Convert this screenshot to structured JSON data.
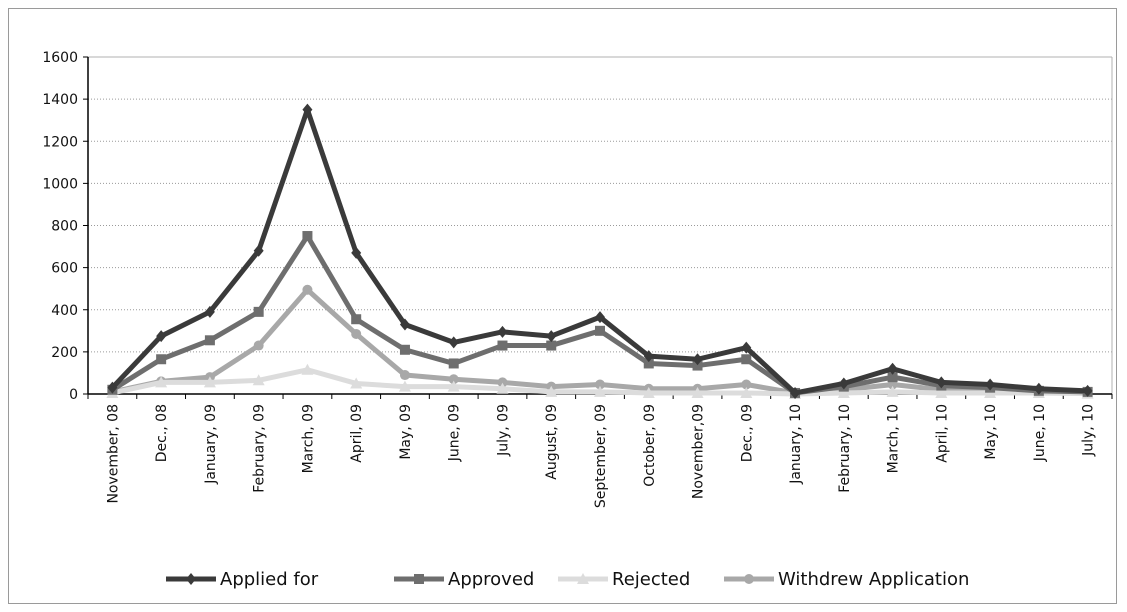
{
  "chart_data": {
    "type": "line",
    "title": "",
    "xlabel": "",
    "ylabel": "",
    "ylim": [
      0,
      1600
    ],
    "yticks": [
      0,
      200,
      400,
      600,
      800,
      1000,
      1200,
      1400,
      1600
    ],
    "grid": true,
    "legend_position": "bottom",
    "categories": [
      "November, 08",
      "Dec., 08",
      "January, 09",
      "February, 09",
      "March, 09",
      "April, 09",
      "May, 09",
      "June, 09",
      "July, 09",
      "August, 09",
      "September, 09",
      "October, 09",
      "November,09",
      "Dec., 09",
      "January, 10",
      "February, 10",
      "March, 10",
      "April, 10",
      "May, 10",
      "June, 10",
      "July, 10"
    ],
    "series": [
      {
        "name": "Applied for",
        "color": "#3a3a3a",
        "marker": "diamond",
        "values": [
          30,
          275,
          390,
          680,
          1350,
          670,
          330,
          245,
          295,
          275,
          365,
          180,
          165,
          220,
          5,
          50,
          120,
          55,
          45,
          25,
          15
        ]
      },
      {
        "name": "Approved",
        "color": "#6e6e6e",
        "marker": "square",
        "values": [
          20,
          165,
          255,
          390,
          750,
          355,
          210,
          145,
          230,
          230,
          300,
          145,
          135,
          165,
          5,
          35,
          80,
          40,
          30,
          15,
          10
        ]
      },
      {
        "name": "Rejected",
        "color": "#dcdcdc",
        "marker": "triangle",
        "values": [
          5,
          55,
          55,
          65,
          115,
          50,
          35,
          35,
          25,
          10,
          10,
          5,
          5,
          5,
          0,
          5,
          10,
          5,
          5,
          5,
          2
        ]
      },
      {
        "name": "Withdrew Application",
        "color": "#a8a8a8",
        "marker": "circle",
        "values": [
          10,
          60,
          80,
          230,
          495,
          285,
          90,
          70,
          55,
          35,
          45,
          25,
          25,
          45,
          5,
          20,
          45,
          20,
          15,
          10,
          5
        ]
      }
    ]
  }
}
